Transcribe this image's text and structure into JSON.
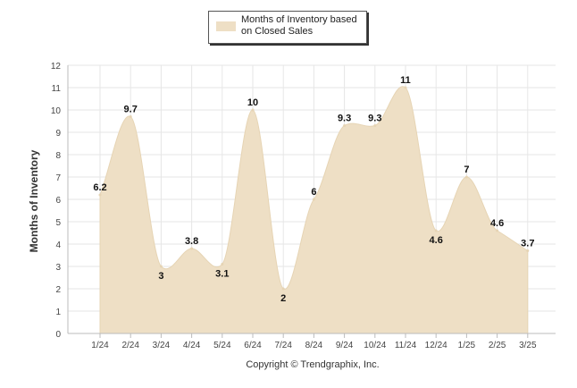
{
  "chart_data": {
    "type": "area",
    "categories": [
      "1/24",
      "2/24",
      "3/24",
      "4/24",
      "5/24",
      "6/24",
      "7/24",
      "8/24",
      "9/24",
      "10/24",
      "11/24",
      "12/24",
      "1/25",
      "2/25",
      "3/25"
    ],
    "series": [
      {
        "name": "Months of Inventory based on Closed Sales",
        "values": [
          6.2,
          9.7,
          3,
          3.8,
          3.1,
          10,
          2,
          6,
          9.3,
          9.3,
          11,
          4.6,
          7,
          4.6,
          3.7
        ],
        "labels": [
          "6.2",
          "9.7",
          "3",
          "3.8",
          "3.1",
          "10",
          "2",
          "6",
          "9.3",
          "9.3",
          "11",
          "4.6",
          "7",
          "4.6",
          "3.7"
        ]
      }
    ],
    "y_ticks": [
      "0",
      "1",
      "2",
      "3",
      "4",
      "5",
      "6",
      "7",
      "8",
      "9",
      "10",
      "11",
      "12"
    ],
    "ylabel": "Months of Inventory",
    "xlabel": "",
    "ylim": [
      0,
      12
    ],
    "grid": true,
    "legend_position": "top-center",
    "colors": {
      "area_fill": "#EEDFC5",
      "area_stroke": "#E6D4B4",
      "grid": "#E6E6E6",
      "axis": "#BBBBBB"
    }
  },
  "legend": {
    "line1": "Months of Inventory based",
    "line2": "on Closed Sales"
  },
  "footer": {
    "copyright": "Copyright © Trendgraphix, Inc."
  }
}
